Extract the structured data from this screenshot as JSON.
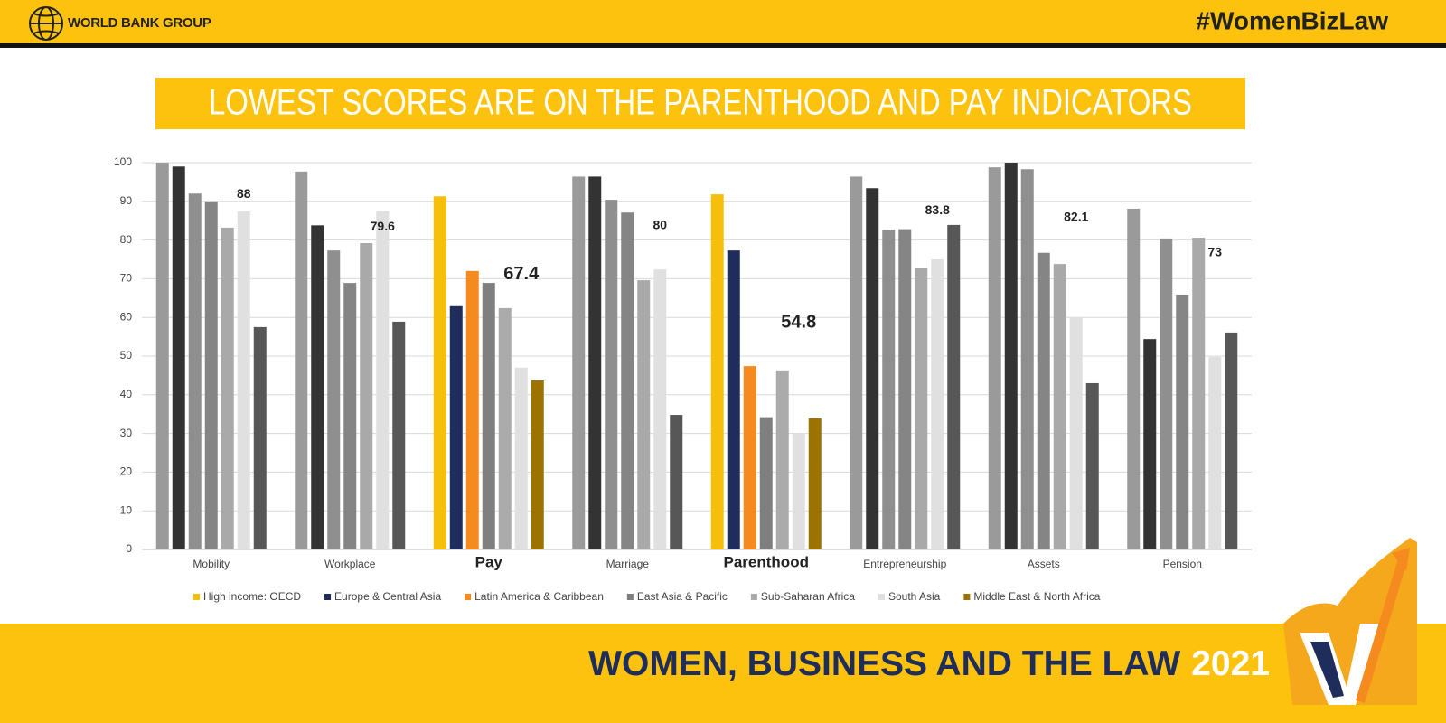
{
  "header": {
    "brand": "WORLD BANK GROUP",
    "hashtag": "#WomenBizLaw"
  },
  "footer": {
    "title": "WOMEN, BUSINESS AND THE LAW",
    "year": "2021"
  },
  "chart_data": {
    "type": "bar",
    "title": "LOWEST SCORES ARE ON THE PARENTHOOD AND PAY INDICATORS",
    "categories": [
      "Mobility",
      "Workplace",
      "Pay",
      "Marriage",
      "Parenthood",
      "Entrepreneurship",
      "Assets",
      "Pension"
    ],
    "highlighted": [
      false,
      false,
      true,
      false,
      true,
      false,
      false,
      false
    ],
    "averages": [
      88,
      79.6,
      67.4,
      80,
      54.8,
      83.8,
      82.1,
      73
    ],
    "series": [
      {
        "name": "High income: OECD",
        "color": "#f5bf0a",
        "muted_color": "#9a9a9a",
        "values": [
          100,
          97.7,
          91.3,
          96.4,
          91.8,
          96.4,
          98.8,
          88.1
        ]
      },
      {
        "name": "Europe & Central Asia",
        "color": "#1f2d5c",
        "muted_color": "#333333",
        "values": [
          99,
          83.8,
          62.9,
          96.4,
          77.3,
          93.4,
          100,
          54.4
        ]
      },
      {
        "name": "Latin America & Caribbean",
        "color": "#f58a1f",
        "muted_color": "#8f8f8f",
        "values": [
          92,
          77.3,
          72,
          90.4,
          47.4,
          82.7,
          98.3,
          80.4
        ]
      },
      {
        "name": "East Asia & Pacific",
        "color": "#7f7f7f",
        "muted_color": "#858585",
        "values": [
          90,
          68.9,
          68.9,
          87.1,
          34.2,
          82.8,
          76.7,
          65.9
        ]
      },
      {
        "name": "Sub-Saharan Africa",
        "color": "#ababab",
        "muted_color": "#a9a9a9",
        "values": [
          83.2,
          79.2,
          62.4,
          69.6,
          46.3,
          72.9,
          73.8,
          80.6
        ]
      },
      {
        "name": "South Asia",
        "color": "#e0e0e0",
        "muted_color": "#e0e0e0",
        "values": [
          87.4,
          87.5,
          47,
          72.4,
          29.9,
          75,
          60,
          49.8
        ]
      },
      {
        "name": "Middle East & North Africa",
        "color": "#9c7200",
        "muted_color": "#575757",
        "values": [
          57.5,
          58.9,
          43.7,
          34.8,
          33.9,
          83.9,
          43,
          56.1
        ]
      }
    ],
    "ylim": [
      0,
      100
    ],
    "yticks": [
      0,
      10,
      20,
      30,
      40,
      50,
      60,
      70,
      80,
      90,
      100
    ],
    "grid": true,
    "legend": "bottom"
  }
}
